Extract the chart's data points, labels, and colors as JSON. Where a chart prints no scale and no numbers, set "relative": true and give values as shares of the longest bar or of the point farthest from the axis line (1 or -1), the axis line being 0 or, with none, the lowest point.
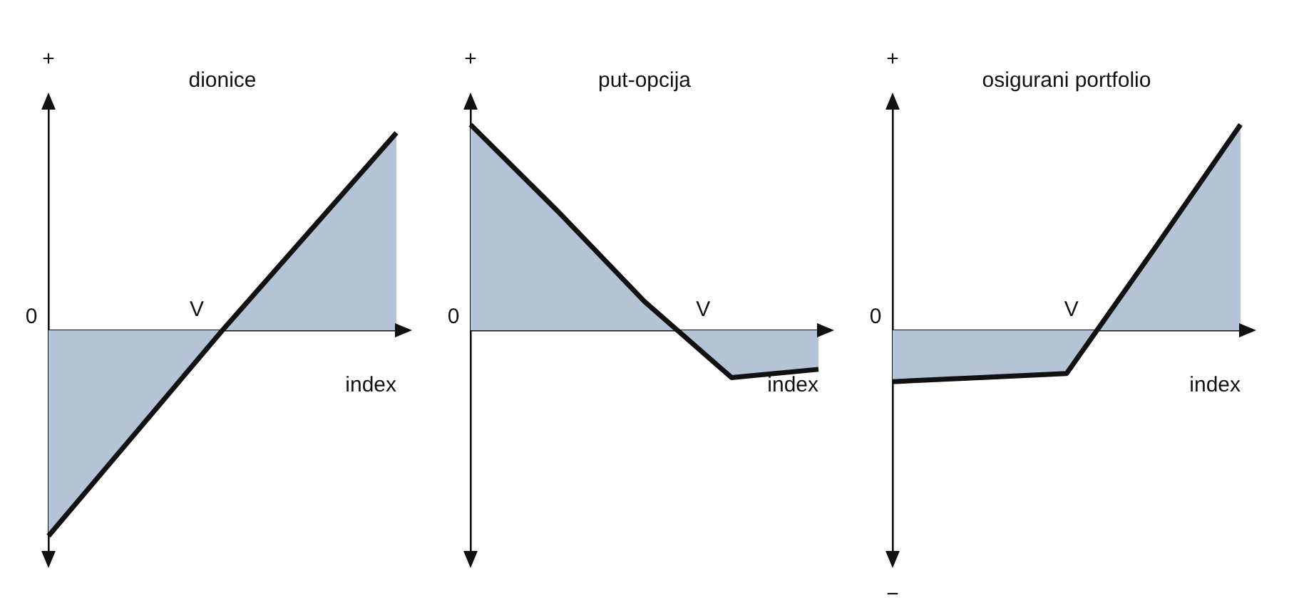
{
  "chart_data": [
    {
      "type": "area",
      "title": "dionice",
      "xlabel": "index",
      "relative": true,
      "legend": false,
      "grid": false,
      "marker": "none",
      "categories": [
        null,
        null,
        null
      ],
      "annotations": [
        "+",
        "0",
        {
          "text": "V",
          "y": 0
        }
      ],
      "series": [
        {
          "color": "#b4c3d6",
          "values": [
            -1,
            0,
            0.96
          ]
        }
      ]
    },
    {
      "type": "area",
      "title": "put-opcija",
      "xlabel": "index",
      "relative": true,
      "legend": false,
      "grid": false,
      "marker": "none",
      "categories": [
        null,
        null,
        null,
        null,
        null
      ],
      "annotations": [
        "+",
        "0",
        {
          "text": "V",
          "y": 0
        }
      ],
      "series": [
        {
          "color": "#b4c3d6",
          "values": [
            1,
            0.58,
            0.14,
            -0.23,
            -0.19
          ]
        }
      ]
    },
    {
      "type": "area",
      "title": "osigurani portfolio",
      "xlabel": "index",
      "relative": true,
      "legend": false,
      "grid": false,
      "marker": "none",
      "categories": [
        null,
        null,
        null,
        null,
        null
      ],
      "annotations": [
        "+",
        "0",
        "−",
        {
          "text": "V",
          "y": 0
        }
      ],
      "series": [
        {
          "color": "#b4c3d6",
          "values": [
            -0.25,
            -0.23,
            -0.21,
            0.39,
            1
          ]
        }
      ]
    }
  ]
}
